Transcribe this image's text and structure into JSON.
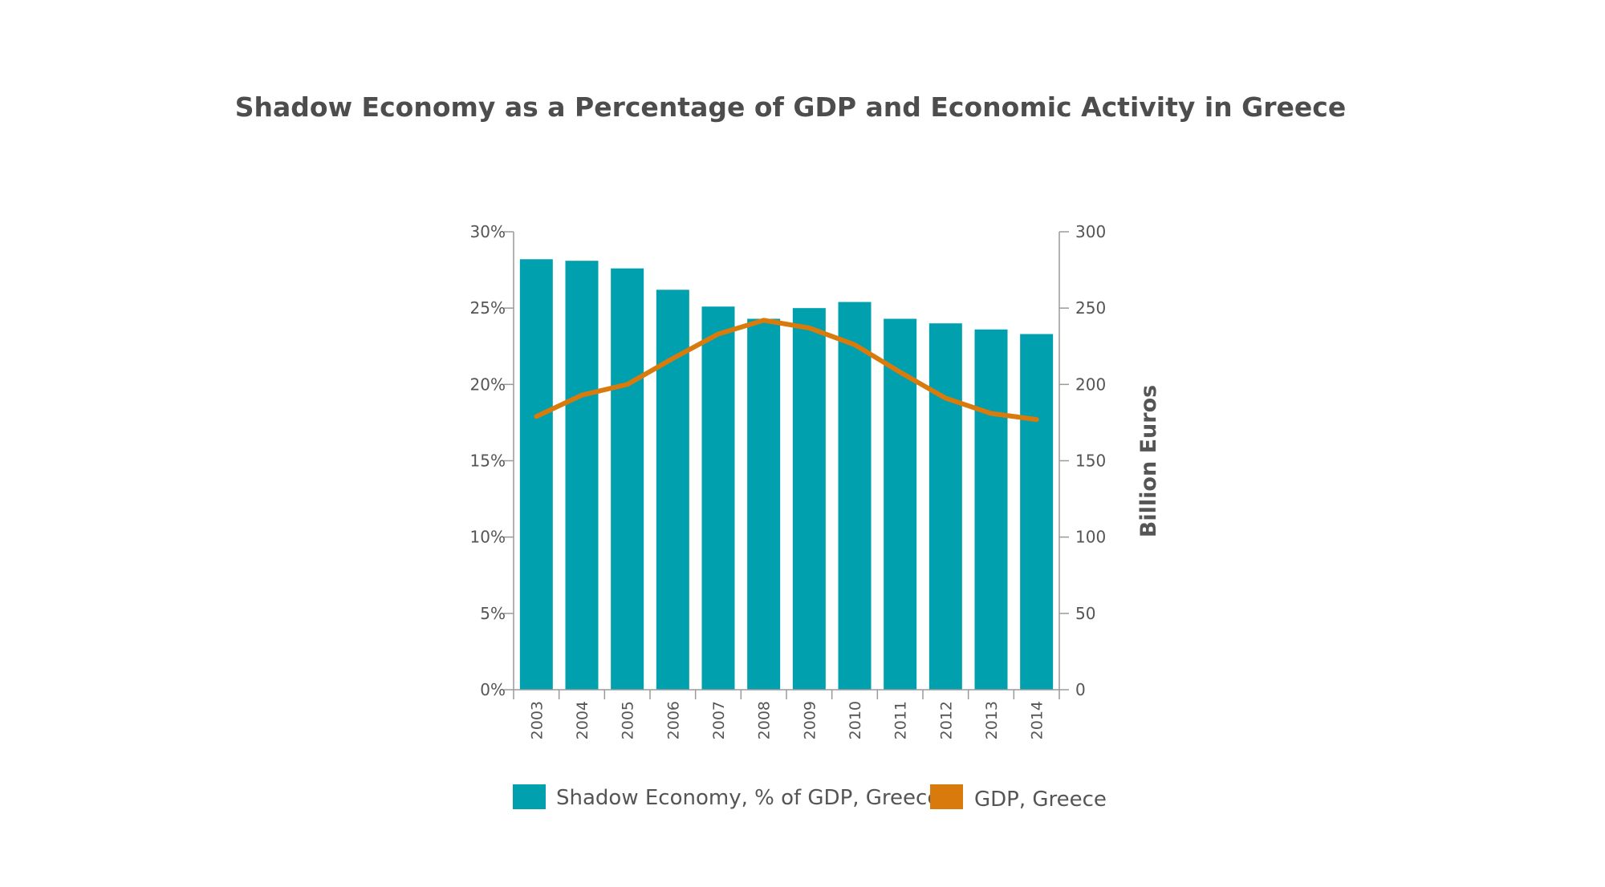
{
  "chart_data": {
    "type": "bar",
    "title": "Shadow Economy as a Percentage of GDP and Economic Activity in Greece",
    "categories": [
      "2003",
      "2004",
      "2005",
      "2006",
      "2007",
      "2008",
      "2009",
      "2010",
      "2011",
      "2012",
      "2013",
      "2014"
    ],
    "series": [
      {
        "name": "Shadow Economy, % of GDP, Greece",
        "type": "bar",
        "axis": "left",
        "color": "#00a0ae",
        "values": [
          28.2,
          28.1,
          27.6,
          26.2,
          25.1,
          24.3,
          25.0,
          25.4,
          24.3,
          24.0,
          23.6,
          23.3
        ]
      },
      {
        "name": "GDP, Greece",
        "type": "line",
        "axis": "right",
        "color": "#d97b0c",
        "values": [
          179,
          193,
          200,
          217,
          233,
          242,
          237,
          226,
          208,
          191,
          181,
          177
        ]
      }
    ],
    "y_left": {
      "min": 0,
      "max": 30,
      "ticks": [
        "0%",
        "5%",
        "10%",
        "15%",
        "20%",
        "25%",
        "30%"
      ]
    },
    "y_right": {
      "min": 0,
      "max": 300,
      "ticks": [
        "0",
        "50",
        "100",
        "150",
        "200",
        "250",
        "300"
      ],
      "label": "Billion Euros"
    },
    "legend_position": "bottom",
    "grid": false
  }
}
